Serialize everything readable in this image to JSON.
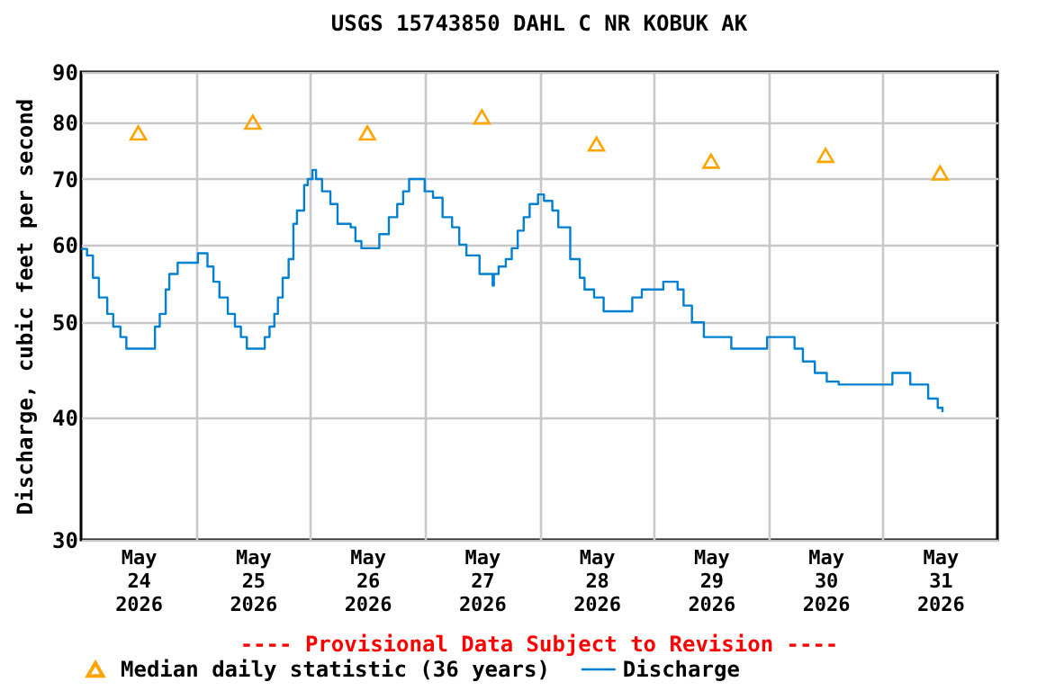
{
  "chart_data": {
    "type": "step",
    "title": "USGS 15743850 DAHL C NR KOBUK AK",
    "ylabel": "Discharge, cubic feet per second",
    "annotations": [
      "---- Provisional Data Subject to Revision ----"
    ],
    "log": "y",
    "grid": true,
    "legend": "bottom",
    "ylim": [
      30,
      90
    ],
    "yticks": [
      30,
      40,
      50,
      60,
      70,
      80,
      90
    ],
    "xlim": [
      "2026-05-24T00:00",
      "2026-06-01T00:00"
    ],
    "xticks": [
      {
        "value": "2026-05-24T12:00",
        "label": "May 24 2026"
      },
      {
        "value": "2026-05-25T00:00",
        "label": null
      },
      {
        "value": "2026-05-25T12:00",
        "label": "May 25 2026"
      },
      {
        "value": "2026-05-26T00:00",
        "label": null
      },
      {
        "value": "2026-05-26T12:00",
        "label": "May 26 2026"
      },
      {
        "value": "2026-05-27T00:00",
        "label": null
      },
      {
        "value": "2026-05-27T12:00",
        "label": "May 27 2026"
      },
      {
        "value": "2026-05-28T00:00",
        "label": null
      },
      {
        "value": "2026-05-28T12:00",
        "label": "May 28 2026"
      },
      {
        "value": "2026-05-29T00:00",
        "label": null
      },
      {
        "value": "2026-05-29T12:00",
        "label": "May 29 2026"
      },
      {
        "value": "2026-05-30T00:00",
        "label": null
      },
      {
        "value": "2026-05-30T12:00",
        "label": "May 30 2026"
      },
      {
        "value": "2026-05-31T00:00",
        "label": null
      },
      {
        "value": "2026-05-31T12:00",
        "label": "May 31 2026"
      }
    ],
    "series": [
      {
        "name": "Median daily statistic (36 years)",
        "type": "scatter",
        "marker": "triangle",
        "color": "#ffa500",
        "x": [
          "2026-05-24T12:00",
          "2026-05-25T12:00",
          "2026-05-26T12:00",
          "2026-05-27T12:00",
          "2026-05-28T12:00",
          "2026-05-29T12:00",
          "2026-05-30T12:00",
          "2026-05-31T12:00"
        ],
        "values": [
          78,
          80,
          78,
          81,
          76,
          73,
          74,
          71
        ]
      },
      {
        "name": "Discharge",
        "marker": "none",
        "line_style": "solid",
        "color": "#0080d0",
        "x": [
          "2026-05-24T00:00",
          "2026-05-24T01:15",
          "2026-05-24T02:30",
          "2026-05-24T03:45",
          "2026-05-24T05:30",
          "2026-05-24T06:45",
          "2026-05-24T08:15",
          "2026-05-24T09:30",
          "2026-05-24T11:30",
          "2026-05-24T14:30",
          "2026-05-24T15:30",
          "2026-05-24T16:30",
          "2026-05-24T17:45",
          "2026-05-24T18:30",
          "2026-05-24T20:15",
          "2026-05-24T23:30",
          "2026-05-25T00:30",
          "2026-05-25T02:30",
          "2026-05-25T03:45",
          "2026-05-25T05:00",
          "2026-05-25T06:45",
          "2026-05-25T08:15",
          "2026-05-25T09:30",
          "2026-05-25T10:45",
          "2026-05-25T14:30",
          "2026-05-25T15:30",
          "2026-05-25T16:30",
          "2026-05-25T17:15",
          "2026-05-25T18:15",
          "2026-05-25T19:30",
          "2026-05-25T20:30",
          "2026-05-25T21:15",
          "2026-05-25T22:45",
          "2026-05-25T23:30",
          "2026-05-26T00:30",
          "2026-05-26T01:15",
          "2026-05-26T02:30",
          "2026-05-26T04:15",
          "2026-05-26T05:45",
          "2026-05-26T08:30",
          "2026-05-26T09:30",
          "2026-05-26T10:45",
          "2026-05-26T13:15",
          "2026-05-26T14:30",
          "2026-05-26T16:30",
          "2026-05-26T18:15",
          "2026-05-26T19:30",
          "2026-05-26T20:45",
          "2026-05-26T23:30",
          "2026-05-27T00:00",
          "2026-05-27T01:45",
          "2026-05-27T03:45",
          "2026-05-27T05:45",
          "2026-05-27T07:15",
          "2026-05-27T08:45",
          "2026-05-27T11:30",
          "2026-05-27T14:15",
          "2026-05-27T14:30",
          "2026-05-27T15:30",
          "2026-05-27T17:00",
          "2026-05-27T18:15",
          "2026-05-27T19:30",
          "2026-05-27T20:45",
          "2026-05-27T22:00",
          "2026-05-27T23:45",
          "2026-05-28T01:00",
          "2026-05-28T02:45",
          "2026-05-28T04:00",
          "2026-05-28T06:30",
          "2026-05-28T08:30",
          "2026-05-28T09:30",
          "2026-05-28T11:30",
          "2026-05-28T13:30",
          "2026-05-28T17:45",
          "2026-05-28T19:30",
          "2026-05-28T21:30",
          "2026-05-29T02:00",
          "2026-05-29T05:00",
          "2026-05-29T06:15",
          "2026-05-29T08:00",
          "2026-05-29T10:30",
          "2026-05-29T16:15",
          "2026-05-29T22:30",
          "2026-05-29T23:45",
          "2026-05-30T03:30",
          "2026-05-30T05:30",
          "2026-05-30T07:15",
          "2026-05-30T09:45",
          "2026-05-30T12:15",
          "2026-05-30T14:45",
          "2026-05-30T19:45",
          "2026-05-30T23:30",
          "2026-05-31T02:00",
          "2026-05-31T05:45",
          "2026-05-31T09:30",
          "2026-05-31T11:30",
          "2026-05-31T12:30"
        ],
        "values": [
          59.4,
          58.5,
          55.5,
          53,
          51,
          49.5,
          48.3,
          47,
          47,
          47,
          49.5,
          51,
          54,
          56,
          57.5,
          57.5,
          58.8,
          57,
          55,
          53,
          51,
          49.5,
          48.3,
          47,
          48.3,
          49.5,
          51,
          53,
          55.5,
          58,
          63,
          65,
          69,
          70,
          71.5,
          70,
          68,
          66,
          63,
          62.5,
          60.5,
          59.5,
          59.5,
          61.5,
          64,
          66,
          68,
          70,
          70,
          68,
          67,
          64,
          62.5,
          60,
          58.5,
          56,
          54.5,
          56,
          57,
          58,
          59.5,
          62,
          64,
          66,
          67.5,
          66.5,
          65,
          62.5,
          58,
          55.5,
          54,
          53,
          51.3,
          51.3,
          53,
          54,
          55,
          54,
          52,
          50,
          48.3,
          47,
          47,
          48.3,
          48.3,
          47,
          45.6,
          44.4,
          43.5,
          43.2,
          43.2,
          43.2,
          44.4,
          43.2,
          41.8,
          40.9,
          40.5
        ]
      }
    ]
  }
}
